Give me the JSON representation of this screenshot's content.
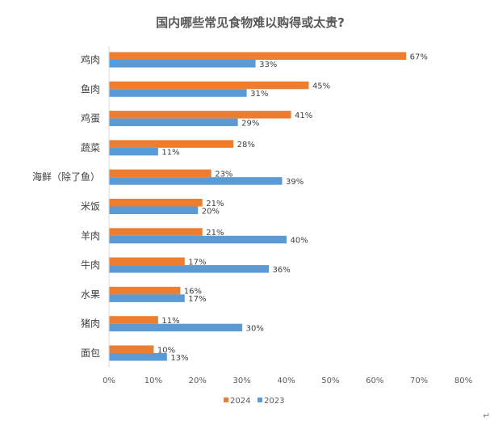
{
  "chart_data": {
    "type": "bar",
    "orientation": "horizontal",
    "title": "国内哪些常见食物难以购得或太贵?",
    "categories": [
      "鸡肉",
      "鱼肉",
      "鸡蛋",
      "蔬菜",
      "海鲜（除了鱼）",
      "米饭",
      "羊肉",
      "牛肉",
      "水果",
      "猪肉",
      "面包"
    ],
    "series": [
      {
        "name": "2024",
        "color": "#ED7D31",
        "values": [
          67,
          45,
          41,
          28,
          23,
          21,
          21,
          17,
          16,
          11,
          10
        ]
      },
      {
        "name": "2023",
        "color": "#5B9BD5",
        "values": [
          33,
          31,
          29,
          11,
          39,
          20,
          40,
          36,
          17,
          30,
          13
        ]
      }
    ],
    "xlim": [
      0,
      80
    ],
    "xticks": [
      "0%",
      "10%",
      "20%",
      "30%",
      "40%",
      "50%",
      "60%",
      "70%",
      "80%"
    ],
    "value_format": "percent",
    "grid": false,
    "legend_position": "bottom",
    "xlabel": "",
    "ylabel": ""
  },
  "corner_mark": "↵"
}
